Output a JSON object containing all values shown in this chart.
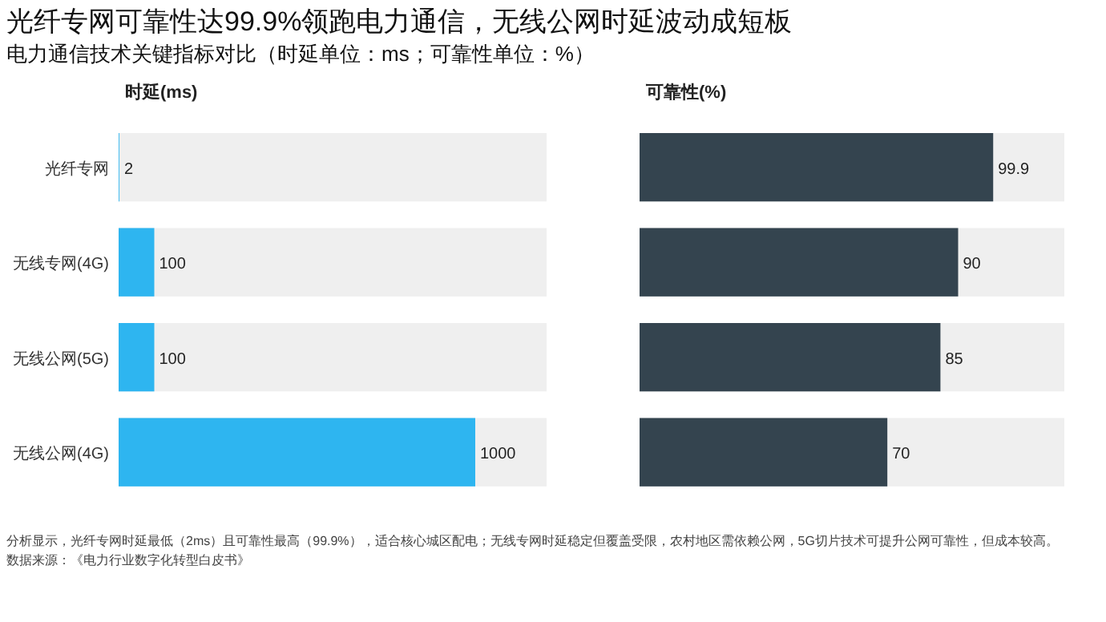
{
  "chart_data": [
    {
      "type": "bar",
      "orientation": "horizontal",
      "title": "光纤专网可靠性达99.9%领跑电力通信，无线公网时延波动成短板",
      "subtitle": "电力通信技术关键指标对比（时延单位：ms；可靠性单位：%）",
      "xlabel": "时延(ms)",
      "categories": [
        "光纤专网",
        "无线专网(4G)",
        "无线公网(5G)",
        "无线公网(4G)"
      ],
      "values": [
        2,
        100,
        100,
        1000
      ],
      "color": "#2eb5f0",
      "xlim": [
        0,
        1200
      ],
      "data_labels": true,
      "tick_labels": "y",
      "annotations": [
        "分析显示，光纤专网时延最低（2ms）且可靠性最高（99.9%），适合核心城区配电；无线专网时延稳定但覆盖受限，农村地区需依赖公网，5G切片技术可提升公网可靠性，但成本较高。",
        "数据来源：《电力行业数字化转型白皮书》"
      ]
    },
    {
      "type": "bar",
      "orientation": "horizontal",
      "xlabel": "可靠性(%)",
      "categories": [
        null,
        null,
        null,
        null
      ],
      "values": [
        99.9,
        90,
        85,
        70
      ],
      "color": "#34444f",
      "xlim": [
        0,
        120
      ],
      "data_labels": true,
      "tick_labels": false
    }
  ]
}
